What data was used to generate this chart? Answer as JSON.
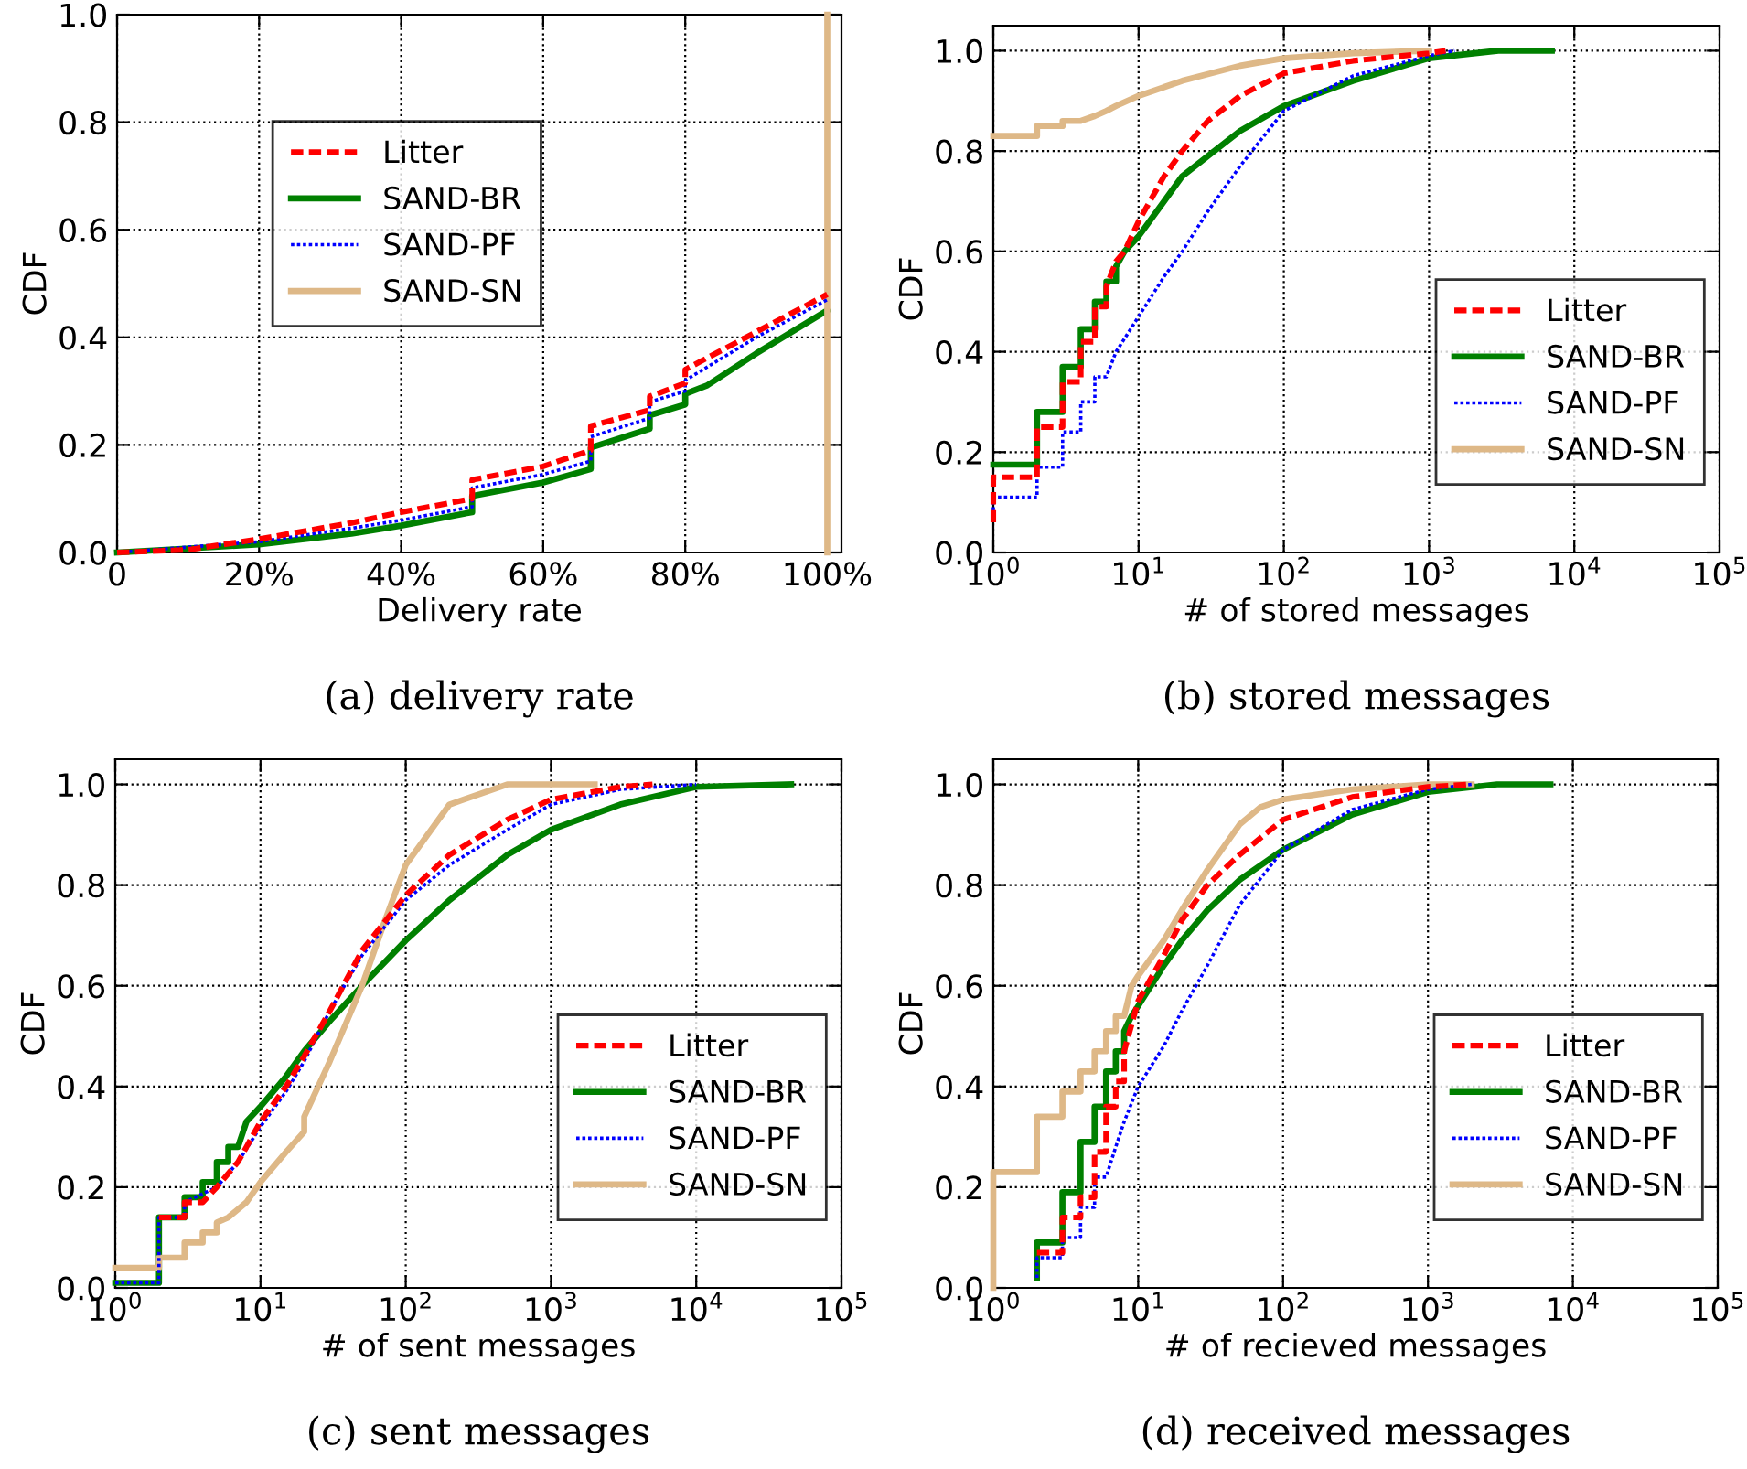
{
  "chart_data": [
    {
      "type": "line",
      "title": "(a) delivery rate",
      "xlabel": "Delivery rate",
      "ylabel": "CDF",
      "xlim": [
        0,
        102
      ],
      "ylim": [
        0,
        1.0
      ],
      "xticks": [
        0,
        {
          "value": 20,
          "label": "20%"
        },
        {
          "value": 40,
          "label": "40%"
        },
        {
          "value": 60,
          "label": "60%"
        },
        {
          "value": 80,
          "label": "80%"
        },
        {
          "value": 100,
          "label": "100%"
        }
      ],
      "yticks": [
        {
          "value": 0,
          "label": "0.0"
        },
        {
          "value": 0.2,
          "label": "0.2"
        },
        {
          "value": 0.4,
          "label": "0.4"
        },
        {
          "value": 0.6,
          "label": "0.6"
        },
        {
          "value": 0.8,
          "label": "0.8"
        },
        {
          "value": 1.0,
          "label": "1.0"
        }
      ],
      "grid": true,
      "legend": "top",
      "series": [
        {
          "name": "Litter",
          "color": "#ff0000",
          "line_style": "dashed",
          "x": [
            0,
            10,
            20,
            33,
            40,
            50,
            50,
            60,
            66.7,
            66.7,
            75,
            75,
            80,
            80,
            90,
            100
          ],
          "values": [
            0,
            0.005,
            0.025,
            0.055,
            0.075,
            0.1,
            0.135,
            0.16,
            0.19,
            0.235,
            0.265,
            0.29,
            0.315,
            0.34,
            0.41,
            0.48
          ]
        },
        {
          "name": "SAND-BR",
          "color": "#008000",
          "line_style": "solid",
          "x": [
            0,
            20,
            33,
            40,
            50,
            50,
            60,
            66.7,
            66.7,
            75,
            75,
            80,
            80,
            83,
            90,
            100
          ],
          "values": [
            0,
            0.015,
            0.035,
            0.05,
            0.075,
            0.105,
            0.13,
            0.155,
            0.195,
            0.23,
            0.255,
            0.275,
            0.295,
            0.31,
            0.37,
            0.45
          ]
        },
        {
          "name": "SAND-PF",
          "color": "#0000ff",
          "line_style": "dotted",
          "x": [
            0,
            20,
            33,
            40,
            50,
            50,
            60,
            66.7,
            66.7,
            75,
            75,
            80,
            80,
            90,
            100
          ],
          "values": [
            0,
            0.02,
            0.045,
            0.06,
            0.085,
            0.12,
            0.145,
            0.17,
            0.215,
            0.25,
            0.28,
            0.3,
            0.32,
            0.4,
            0.47
          ]
        },
        {
          "name": "SAND-SN",
          "color": "#deb887",
          "line_style": "solid",
          "x": [
            100,
            100
          ],
          "values": [
            0,
            1
          ]
        }
      ]
    },
    {
      "type": "line",
      "title": "(b) stored messages",
      "xlabel": "# of stored messages",
      "ylabel": "CDF",
      "log": "x",
      "xlim": [
        1,
        100000
      ],
      "ylim": [
        0,
        1.05
      ],
      "xticks": [
        {
          "value": 1,
          "label": "10$^{0}$"
        },
        {
          "value": 10,
          "label": "10$^{1}$"
        },
        {
          "value": 100,
          "label": "10$^{2}$"
        },
        {
          "value": 1000,
          "label": "10$^{3}$"
        },
        {
          "value": 10000,
          "label": "10$^{4}$"
        },
        {
          "value": 100000,
          "label": "10$^{5}$"
        }
      ],
      "yticks": [
        {
          "value": 0,
          "label": "0.0"
        },
        {
          "value": 0.2,
          "label": "0.2"
        },
        {
          "value": 0.4,
          "label": "0.4"
        },
        {
          "value": 0.6,
          "label": "0.6"
        },
        {
          "value": 0.8,
          "label": "0.8"
        },
        {
          "value": 1.0,
          "label": "1.0"
        }
      ],
      "grid": true,
      "legend": "bottom right",
      "series": [
        {
          "name": "Litter",
          "color": "#ff0000",
          "line_style": "dashed",
          "x": [
            1,
            1,
            2,
            2,
            3,
            3,
            4,
            4,
            5,
            5,
            6,
            6,
            7,
            8,
            10,
            15,
            20,
            30,
            50,
            100,
            300,
            1000,
            1300
          ],
          "values": [
            0.06,
            0.15,
            0.15,
            0.25,
            0.25,
            0.34,
            0.34,
            0.42,
            0.42,
            0.49,
            0.49,
            0.53,
            0.58,
            0.6,
            0.66,
            0.75,
            0.8,
            0.86,
            0.91,
            0.955,
            0.98,
            0.995,
            1
          ]
        },
        {
          "name": "SAND-BR",
          "color": "#008000",
          "line_style": "solid",
          "x": [
            1,
            2,
            2,
            3,
            3,
            4,
            4,
            5,
            5,
            6,
            6,
            7,
            7,
            8,
            10,
            15,
            20,
            30,
            50,
            100,
            300,
            1000,
            3000,
            7000
          ],
          "values": [
            0.175,
            0.175,
            0.28,
            0.28,
            0.37,
            0.37,
            0.445,
            0.445,
            0.5,
            0.5,
            0.54,
            0.54,
            0.57,
            0.6,
            0.63,
            0.7,
            0.75,
            0.79,
            0.84,
            0.89,
            0.94,
            0.985,
            1,
            1
          ]
        },
        {
          "name": "SAND-PF",
          "color": "#0000ff",
          "line_style": "dotted",
          "x": [
            1,
            1,
            2,
            2,
            3,
            3,
            4,
            4,
            5,
            5,
            6,
            7,
            10,
            15,
            20,
            30,
            50,
            100,
            300,
            1000,
            1500
          ],
          "values": [
            0.06,
            0.11,
            0.11,
            0.17,
            0.17,
            0.24,
            0.24,
            0.3,
            0.3,
            0.35,
            0.35,
            0.4,
            0.47,
            0.55,
            0.6,
            0.68,
            0.77,
            0.88,
            0.95,
            0.99,
            1
          ]
        },
        {
          "name": "SAND-SN",
          "color": "#deb887",
          "line_style": "solid",
          "x": [
            1,
            2,
            2,
            3,
            3,
            4,
            5,
            6,
            7,
            10,
            20,
            50,
            100,
            300,
            1000
          ],
          "values": [
            0.83,
            0.83,
            0.85,
            0.85,
            0.86,
            0.86,
            0.87,
            0.88,
            0.89,
            0.91,
            0.94,
            0.97,
            0.985,
            0.995,
            1
          ]
        }
      ]
    },
    {
      "type": "line",
      "title": "(c) sent messages",
      "xlabel": "# of sent messages",
      "ylabel": "CDF",
      "log": "x",
      "xlim": [
        1,
        100000
      ],
      "ylim": [
        0,
        1.05
      ],
      "xticks": [
        {
          "value": 1,
          "label": "10$^{0}$"
        },
        {
          "value": 10,
          "label": "10$^{1}$"
        },
        {
          "value": 100,
          "label": "10$^{2}$"
        },
        {
          "value": 1000,
          "label": "10$^{3}$"
        },
        {
          "value": 10000,
          "label": "10$^{4}$"
        },
        {
          "value": 100000,
          "label": "10$^{5}$"
        }
      ],
      "yticks": [
        {
          "value": 0,
          "label": "0.0"
        },
        {
          "value": 0.2,
          "label": "0.2"
        },
        {
          "value": 0.4,
          "label": "0.4"
        },
        {
          "value": 0.6,
          "label": "0.6"
        },
        {
          "value": 0.8,
          "label": "0.8"
        },
        {
          "value": 1.0,
          "label": "1.0"
        }
      ],
      "grid": true,
      "legend": "bottom right",
      "series": [
        {
          "name": "Litter",
          "color": "#ff0000",
          "line_style": "dashed",
          "x": [
            2,
            3,
            3,
            4,
            5,
            7,
            10,
            15,
            20,
            30,
            50,
            100,
            200,
            500,
            1000,
            3000,
            5000
          ],
          "values": [
            0.14,
            0.14,
            0.17,
            0.17,
            0.2,
            0.25,
            0.33,
            0.4,
            0.46,
            0.55,
            0.67,
            0.78,
            0.86,
            0.93,
            0.97,
            0.995,
            1
          ]
        },
        {
          "name": "SAND-BR",
          "color": "#008000",
          "line_style": "solid",
          "x": [
            1,
            2,
            2,
            3,
            3,
            4,
            4,
            5,
            5,
            6,
            6,
            7,
            8,
            10,
            15,
            20,
            30,
            50,
            100,
            200,
            500,
            1000,
            3000,
            10000,
            45000
          ],
          "values": [
            0.01,
            0.01,
            0.14,
            0.14,
            0.18,
            0.18,
            0.21,
            0.21,
            0.25,
            0.25,
            0.28,
            0.28,
            0.33,
            0.36,
            0.42,
            0.47,
            0.53,
            0.6,
            0.69,
            0.77,
            0.86,
            0.91,
            0.96,
            0.995,
            1
          ]
        },
        {
          "name": "SAND-PF",
          "color": "#0000ff",
          "line_style": "dotted",
          "x": [
            1,
            2,
            2,
            3,
            3,
            5,
            7,
            10,
            15,
            20,
            30,
            50,
            100,
            200,
            500,
            1000,
            3000,
            10000
          ],
          "values": [
            0.01,
            0.01,
            0.14,
            0.14,
            0.17,
            0.2,
            0.25,
            0.32,
            0.39,
            0.45,
            0.55,
            0.66,
            0.77,
            0.84,
            0.91,
            0.96,
            0.99,
            1
          ]
        },
        {
          "name": "SAND-SN",
          "color": "#deb887",
          "line_style": "solid",
          "x": [
            1,
            2,
            2,
            3,
            3,
            4,
            4,
            5,
            5,
            6,
            8,
            10,
            15,
            20,
            20,
            30,
            50,
            70,
            100,
            200,
            500,
            2000
          ],
          "values": [
            0.04,
            0.04,
            0.06,
            0.06,
            0.09,
            0.09,
            0.11,
            0.11,
            0.13,
            0.14,
            0.17,
            0.21,
            0.27,
            0.31,
            0.34,
            0.45,
            0.6,
            0.72,
            0.84,
            0.96,
            1,
            1
          ]
        }
      ]
    },
    {
      "type": "line",
      "title": "(d) received messages",
      "xlabel": "# of recieved messages",
      "ylabel": "CDF",
      "log": "x",
      "xlim": [
        1,
        100000
      ],
      "ylim": [
        0,
        1.05
      ],
      "xticks": [
        {
          "value": 1,
          "label": "10$^{0}$"
        },
        {
          "value": 10,
          "label": "10$^{1}$"
        },
        {
          "value": 100,
          "label": "10$^{2}$"
        },
        {
          "value": 1000,
          "label": "10$^{3}$"
        },
        {
          "value": 10000,
          "label": "10$^{4}$"
        },
        {
          "value": 100000,
          "label": "10$^{5}$"
        }
      ],
      "yticks": [
        {
          "value": 0,
          "label": "0.0"
        },
        {
          "value": 0.2,
          "label": "0.2"
        },
        {
          "value": 0.4,
          "label": "0.4"
        },
        {
          "value": 0.6,
          "label": "0.6"
        },
        {
          "value": 0.8,
          "label": "0.8"
        },
        {
          "value": 1.0,
          "label": "1.0"
        }
      ],
      "grid": true,
      "legend": "bottom right",
      "series": [
        {
          "name": "Litter",
          "color": "#ff0000",
          "line_style": "dashed",
          "x": [
            2,
            3,
            3,
            4,
            4,
            5,
            5,
            6,
            6,
            7,
            7,
            8,
            8,
            10,
            15,
            20,
            30,
            50,
            100,
            300,
            1000,
            2000
          ],
          "values": [
            0.07,
            0.07,
            0.14,
            0.14,
            0.18,
            0.18,
            0.27,
            0.27,
            0.36,
            0.36,
            0.41,
            0.41,
            0.47,
            0.57,
            0.66,
            0.73,
            0.8,
            0.86,
            0.93,
            0.975,
            0.995,
            1
          ]
        },
        {
          "name": "SAND-BR",
          "color": "#008000",
          "line_style": "solid",
          "x": [
            2,
            2,
            3,
            3,
            4,
            4,
            5,
            5,
            6,
            6,
            7,
            7,
            8,
            8,
            9,
            10,
            15,
            20,
            30,
            50,
            100,
            300,
            1000,
            3000,
            7000
          ],
          "values": [
            0.02,
            0.09,
            0.09,
            0.19,
            0.19,
            0.29,
            0.29,
            0.36,
            0.36,
            0.43,
            0.43,
            0.47,
            0.47,
            0.51,
            0.54,
            0.56,
            0.64,
            0.69,
            0.75,
            0.81,
            0.87,
            0.94,
            0.985,
            1,
            1
          ]
        },
        {
          "name": "SAND-PF",
          "color": "#0000ff",
          "line_style": "dotted",
          "x": [
            2,
            2,
            3,
            3,
            4,
            4,
            5,
            5,
            6,
            7,
            8,
            10,
            15,
            20,
            30,
            50,
            100,
            300,
            1000,
            2000
          ],
          "values": [
            0.02,
            0.06,
            0.06,
            0.1,
            0.1,
            0.16,
            0.16,
            0.22,
            0.22,
            0.28,
            0.33,
            0.4,
            0.48,
            0.55,
            0.64,
            0.76,
            0.87,
            0.95,
            0.99,
            1
          ]
        },
        {
          "name": "SAND-SN",
          "color": "#deb887",
          "line_style": "solid",
          "x": [
            1,
            1,
            2,
            2,
            3,
            3,
            4,
            4,
            5,
            5,
            6,
            6,
            7,
            7,
            8,
            9,
            10,
            15,
            20,
            30,
            50,
            70,
            100,
            300,
            1000,
            2000
          ],
          "values": [
            0,
            0.23,
            0.23,
            0.34,
            0.34,
            0.39,
            0.39,
            0.43,
            0.43,
            0.47,
            0.47,
            0.51,
            0.51,
            0.54,
            0.54,
            0.6,
            0.62,
            0.69,
            0.75,
            0.83,
            0.92,
            0.955,
            0.97,
            0.99,
            1,
            1
          ]
        }
      ]
    }
  ]
}
